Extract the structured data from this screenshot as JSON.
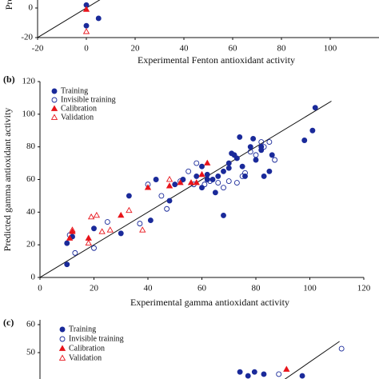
{
  "chart_data": [
    {
      "type": "scatter",
      "xlabel": "Experimental Fenton antioxidant activity",
      "ylabel": "Predicted Fenton antioxidant activity",
      "xlim": [
        -20,
        120
      ],
      "ylim": [
        -20,
        120
      ],
      "xticks": [
        -20,
        0,
        20,
        40,
        60,
        80,
        100
      ],
      "yticks": [
        -20,
        0
      ],
      "series": [
        {
          "color": "#1a2a9a",
          "marker": "circle",
          "filled": true,
          "x": [
            0,
            5,
            0
          ],
          "values": [
            2,
            -7,
            -12
          ]
        },
        {
          "color": "#e8141b",
          "marker": "triangle",
          "filled": true,
          "x": [
            0
          ],
          "values": [
            -1
          ]
        },
        {
          "color": "#e8141b",
          "marker": "triangle",
          "filled": false,
          "x": [
            0
          ],
          "values": [
            -16
          ]
        }
      ]
    },
    {
      "type": "scatter",
      "panel_label": "(b)",
      "xlabel": "Experimental gamma antioxidant activity",
      "ylabel": "Predicted gamma antioxidant activity",
      "xlim": [
        0,
        120
      ],
      "ylim": [
        0,
        120
      ],
      "xticks": [
        0,
        20,
        40,
        60,
        80,
        100,
        120
      ],
      "yticks": [
        0,
        20,
        40,
        60,
        80,
        100,
        120
      ],
      "series": [
        {
          "name": "Training",
          "color": "#1a2a9a",
          "marker": "circle",
          "filled": true,
          "x": [
            10,
            10,
            12,
            20,
            30,
            33,
            41,
            43,
            48,
            50,
            53,
            58,
            60,
            60,
            62,
            64,
            65,
            68,
            68,
            70,
            72,
            73,
            74,
            75,
            76,
            78,
            79,
            80,
            82,
            82,
            83,
            85,
            86,
            98,
            101,
            102,
            70,
            66,
            71,
            62
          ],
          "values": [
            8,
            21,
            25,
            30,
            27,
            50,
            35,
            60,
            47,
            57,
            60,
            62,
            68,
            55,
            63,
            60,
            52,
            38,
            65,
            67,
            75,
            73,
            86,
            68,
            62,
            80,
            85,
            72,
            78,
            80,
            62,
            65,
            75,
            84,
            90,
            104,
            70,
            62,
            76,
            60
          ]
        },
        {
          "name": "Invisible training",
          "color": "#1a2a9a",
          "marker": "circle",
          "filled": false,
          "x": [
            11,
            13,
            20,
            25,
            37,
            40,
            45,
            47,
            52,
            55,
            57,
            58,
            61,
            63,
            66,
            68,
            70,
            73,
            75,
            76,
            80,
            82,
            83,
            85,
            87,
            78
          ],
          "values": [
            26,
            15,
            18,
            34,
            33,
            57,
            50,
            42,
            59,
            65,
            57,
            70,
            57,
            59,
            58,
            55,
            59,
            58,
            62,
            64,
            75,
            83,
            80,
            83,
            72,
            77
          ]
        },
        {
          "name": "Calibration",
          "color": "#e8141b",
          "marker": "triangle",
          "filled": true,
          "x": [
            12,
            11,
            18,
            30,
            40,
            48,
            52,
            58,
            60,
            62,
            56
          ],
          "values": [
            28,
            24,
            24,
            38,
            55,
            56,
            58,
            58,
            63,
            70,
            58
          ]
        },
        {
          "name": "Validation",
          "color": "#e8141b",
          "marker": "triangle",
          "filled": false,
          "x": [
            12,
            18,
            19,
            21,
            23,
            26,
            33,
            38,
            48
          ],
          "values": [
            29,
            21,
            37,
            38,
            28,
            29,
            41,
            29,
            60
          ]
        }
      ]
    },
    {
      "type": "scatter",
      "panel_label": "(c)",
      "xlim": [
        -20,
        60
      ],
      "ylim": [
        40,
        60
      ],
      "yticks": [
        50,
        60
      ],
      "series": [
        {
          "name": "Training",
          "color": "#1a2a9a",
          "marker": "circle",
          "filled": true,
          "x": [
            29.4,
            33,
            35.3,
            44.8,
            31.4
          ],
          "values": [
            43.1,
            43.1,
            42.3,
            41.7,
            41.7
          ]
        },
        {
          "name": "Invisible training",
          "color": "#1a2a9a",
          "marker": "circle",
          "filled": false,
          "x": [
            54.5,
            39
          ],
          "values": [
            51.4,
            42.3
          ]
        },
        {
          "name": "Calibration",
          "color": "#e8141b",
          "marker": "triangle",
          "filled": true,
          "x": [
            40.9
          ],
          "values": [
            44
          ]
        },
        {
          "name": "Validation",
          "color": "#e8141b",
          "marker": "triangle",
          "filled": false,
          "x": [],
          "values": []
        }
      ]
    }
  ]
}
